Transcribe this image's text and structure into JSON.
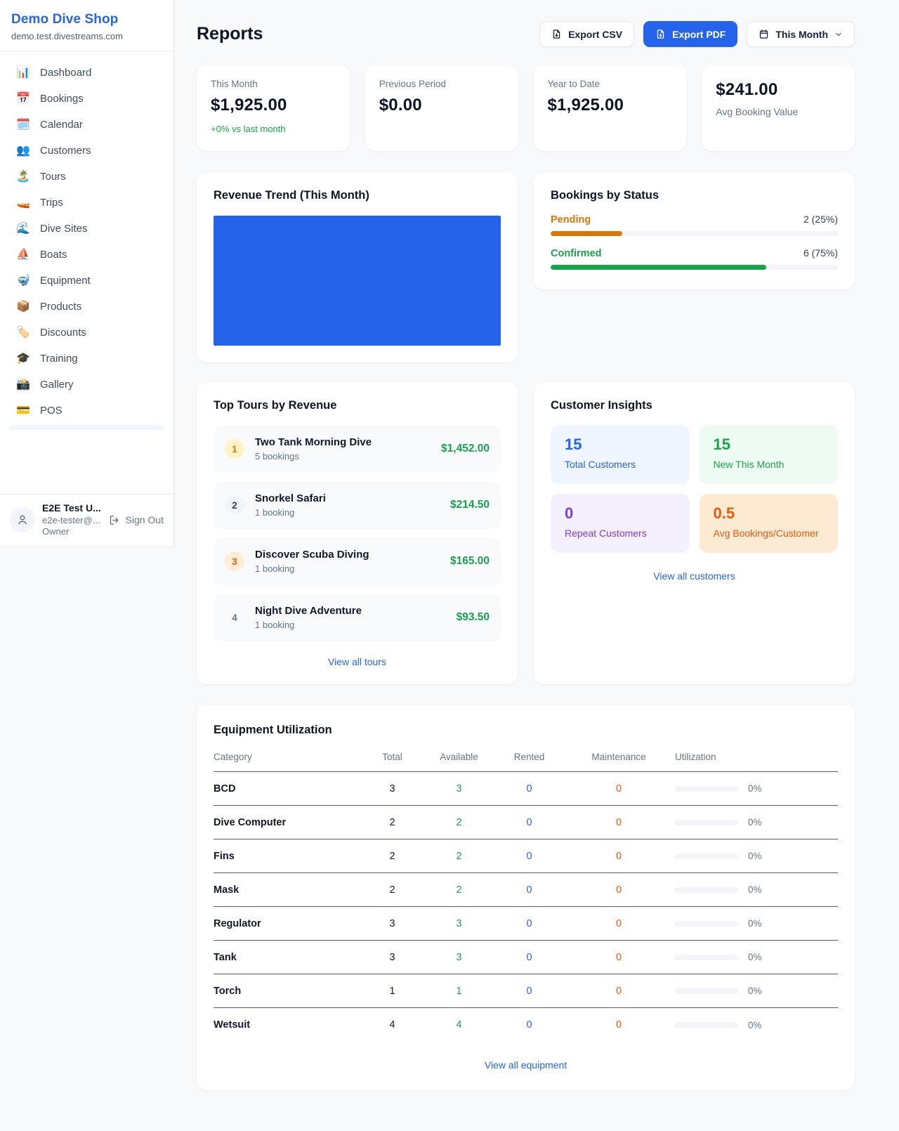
{
  "colors": {
    "accent_blue": "#2563eb",
    "green": "#16a34a",
    "orange": "#ea580c",
    "amber": "#d97706",
    "purple": "#7c3aed"
  },
  "sidebar": {
    "brand": {
      "name": "Demo Dive Shop",
      "domain": "demo.test.divestreams.com"
    },
    "nav": [
      {
        "id": "dashboard",
        "icon": "📊",
        "icon_name": "bar-chart-icon",
        "label": "Dashboard"
      },
      {
        "id": "bookings",
        "icon": "📅",
        "icon_name": "calendar-icon",
        "label": "Bookings"
      },
      {
        "id": "calendar",
        "icon": "🗓️",
        "icon_name": "spiral-calendar-icon",
        "label": "Calendar"
      },
      {
        "id": "customers",
        "icon": "👥",
        "icon_name": "people-icon",
        "label": "Customers"
      },
      {
        "id": "tours",
        "icon": "🏝️",
        "icon_name": "island-icon",
        "label": "Tours"
      },
      {
        "id": "trips",
        "icon": "🚤",
        "icon_name": "speedboat-icon",
        "label": "Trips"
      },
      {
        "id": "dive-sites",
        "icon": "🌊",
        "icon_name": "wave-icon",
        "label": "Dive Sites"
      },
      {
        "id": "boats",
        "icon": "⛵",
        "icon_name": "sailboat-icon",
        "label": "Boats"
      },
      {
        "id": "equipment",
        "icon": "🤿",
        "icon_name": "diving-mask-icon",
        "label": "Equipment"
      },
      {
        "id": "products",
        "icon": "📦",
        "icon_name": "package-icon",
        "label": "Products"
      },
      {
        "id": "discounts",
        "icon": "🏷️",
        "icon_name": "tag-icon",
        "label": "Discounts"
      },
      {
        "id": "training",
        "icon": "🎓",
        "icon_name": "graduation-cap-icon",
        "label": "Training"
      },
      {
        "id": "gallery",
        "icon": "📸",
        "icon_name": "camera-icon",
        "label": "Gallery"
      },
      {
        "id": "pos",
        "icon": "💳",
        "icon_name": "credit-card-icon",
        "label": "POS"
      }
    ],
    "user": {
      "name": "E2E Test U...",
      "email": "e2e-tester@...",
      "role": "Owner",
      "sign_out": "Sign Out"
    }
  },
  "header": {
    "title": "Reports",
    "buttons": {
      "export_csv": "Export CSV",
      "export_pdf": "Export PDF",
      "period": "This Month"
    }
  },
  "stats": {
    "cards": [
      {
        "label": "This Month",
        "value": "$1,925.00",
        "delta": "+0% vs last month"
      },
      {
        "label": "Previous Period",
        "value": "$0.00"
      },
      {
        "label": "Year to Date",
        "value": "$1,925.00"
      },
      {
        "label": "Avg Booking Value",
        "value": "$241.00"
      }
    ]
  },
  "panels": {
    "revenue": {
      "title": "Revenue Trend (This Month)",
      "bar_color": "#2563eb"
    },
    "status": {
      "title": "Bookings by Status",
      "items": [
        {
          "label": "Pending",
          "count": "2 (25%)",
          "pct": 25,
          "color": "#d97706"
        },
        {
          "label": "Confirmed",
          "count": "6 (75%)",
          "pct": 75,
          "color": "#16a34a"
        }
      ]
    },
    "tours": {
      "title": "Top Tours by Revenue",
      "items": [
        {
          "rank": "1",
          "badge_bg": "#fef3c7",
          "badge_fg": "#d97706",
          "name": "Two Tank Morning Dive",
          "bookings": "5 bookings",
          "amount": "$1,452.00"
        },
        {
          "rank": "2",
          "badge_bg": "#f1f5f9",
          "badge_fg": "#334155",
          "name": "Snorkel Safari",
          "bookings": "1 booking",
          "amount": "$214.50"
        },
        {
          "rank": "3",
          "badge_bg": "#ffedd5",
          "badge_fg": "#ea580c",
          "name": "Discover Scuba Diving",
          "bookings": "1 booking",
          "amount": "$165.00"
        },
        {
          "rank": "4",
          "badge_bg": "transparent",
          "badge_fg": "#64748b",
          "name": "Night Dive Adventure",
          "bookings": "1 booking",
          "amount": "$93.50"
        }
      ],
      "link": "View all tours"
    },
    "insights": {
      "title": "Customer Insights",
      "tiles": [
        {
          "value": "15",
          "label": "Total Customers",
          "bg": "#eff6ff",
          "fg": "#2563eb"
        },
        {
          "value": "15",
          "label": "New This Month",
          "bg": "#edfbf2",
          "fg": "#16a34a"
        },
        {
          "value": "0",
          "label": "Repeat Customers",
          "bg": "#f5f0fe",
          "fg": "#7c3aed"
        },
        {
          "value": "0.5",
          "label": "Avg Bookings/Customer",
          "bg": "#fdead2",
          "fg": "#ea580c"
        }
      ],
      "link": "View all customers"
    },
    "equipment": {
      "title": "Equipment Utilization",
      "columns": [
        "Category",
        "Total",
        "Available",
        "Rented",
        "Maintenance",
        "Utilization"
      ],
      "value_colors": {
        "total": "#0f172a",
        "available": "#16a34a",
        "rented": "#2563eb",
        "maintenance": "#ea580c"
      },
      "rows": [
        {
          "category": "BCD",
          "total": "3",
          "available": "3",
          "rented": "0",
          "maintenance": "0",
          "utilization_pct": 0,
          "utilization_label": "0%"
        },
        {
          "category": "Dive Computer",
          "total": "2",
          "available": "2",
          "rented": "0",
          "maintenance": "0",
          "utilization_pct": 0,
          "utilization_label": "0%"
        },
        {
          "category": "Fins",
          "total": "2",
          "available": "2",
          "rented": "0",
          "maintenance": "0",
          "utilization_pct": 0,
          "utilization_label": "0%"
        },
        {
          "category": "Mask",
          "total": "2",
          "available": "2",
          "rented": "0",
          "maintenance": "0",
          "utilization_pct": 0,
          "utilization_label": "0%"
        },
        {
          "category": "Regulator",
          "total": "3",
          "available": "3",
          "rented": "0",
          "maintenance": "0",
          "utilization_pct": 0,
          "utilization_label": "0%"
        },
        {
          "category": "Tank",
          "total": "3",
          "available": "3",
          "rented": "0",
          "maintenance": "0",
          "utilization_pct": 0,
          "utilization_label": "0%"
        },
        {
          "category": "Torch",
          "total": "1",
          "available": "1",
          "rented": "0",
          "maintenance": "0",
          "utilization_pct": 0,
          "utilization_label": "0%"
        },
        {
          "category": "Wetsuit",
          "total": "4",
          "available": "4",
          "rented": "0",
          "maintenance": "0",
          "utilization_pct": 0,
          "utilization_label": "0%"
        }
      ],
      "link": "View all equipment"
    }
  }
}
